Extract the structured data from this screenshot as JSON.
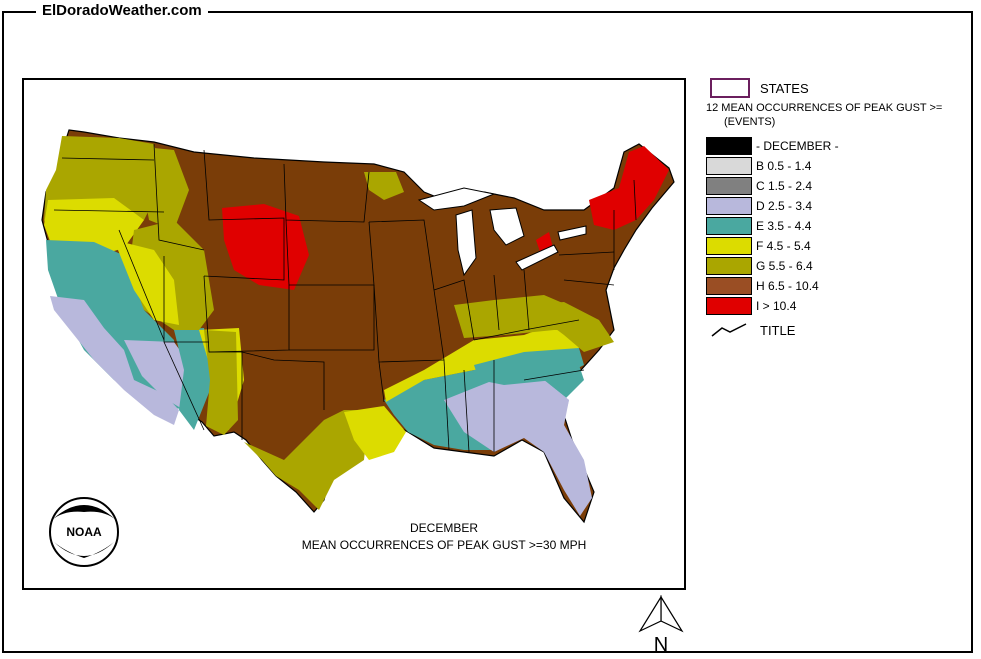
{
  "site": {
    "title": "ElDoradoWeather.com"
  },
  "map": {
    "caption_line1": "DECEMBER",
    "caption_line2": "MEAN OCCURRENCES OF PEAK GUST >=30 MPH",
    "logo_text": "NOAA",
    "north_label": "N"
  },
  "legend": {
    "states_label": "STATES",
    "layer_title_line1": "12 MEAN OCCURRENCES OF PEAK GUST >=",
    "layer_title_line2": "(EVENTS)",
    "items": [
      {
        "label": "- DECEMBER -",
        "color": "#000000"
      },
      {
        "label": "B 0.5 - 1.4",
        "color": "#d9d9d9"
      },
      {
        "label": "C 1.5 - 2.4",
        "color": "#808080"
      },
      {
        "label": "D 2.5 - 3.4",
        "color": "#b8b8dc"
      },
      {
        "label": "E 3.5 - 4.4",
        "color": "#4aa8a0"
      },
      {
        "label": "F 4.5 - 5.4",
        "color": "#dcdc00"
      },
      {
        "label": "G 5.5 - 6.4",
        "color": "#aaa600"
      },
      {
        "label": "H 6.5 - 10.4",
        "color": "#9a4e24"
      },
      {
        "label": "I > 10.4",
        "color": "#e00000"
      }
    ],
    "title_label": "TITLE"
  },
  "colors": {
    "brown_main": "#7a3d08",
    "state_line": "#000000"
  }
}
